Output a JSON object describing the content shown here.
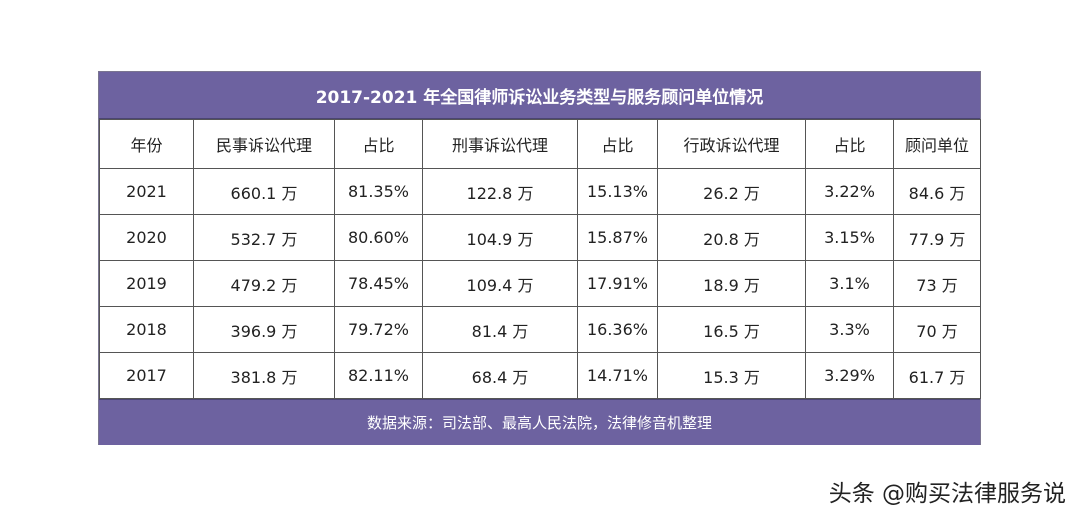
{
  "table": {
    "title": "2017-2021 年全国律师诉讼业务类型与服务顾问单位情况",
    "headers": [
      "年份",
      "民事诉讼代理",
      "占比",
      "刑事诉讼代理",
      "占比",
      "行政诉讼代理",
      "占比",
      "顾问单位"
    ],
    "rows": [
      [
        "2021",
        "660.1 万",
        "81.35%",
        "122.8 万",
        "15.13%",
        "26.2 万",
        "3.22%",
        "84.6 万"
      ],
      [
        "2020",
        "532.7 万",
        "80.60%",
        "104.9 万",
        "15.87%",
        "20.8 万",
        "3.15%",
        "77.9 万"
      ],
      [
        "2019",
        "479.2 万",
        "78.45%",
        "109.4 万",
        "17.91%",
        "18.9 万",
        "3.1%",
        "73 万"
      ],
      [
        "2018",
        "396.9 万",
        "79.72%",
        "81.4 万",
        "16.36%",
        "16.5 万",
        "3.3%",
        "70 万"
      ],
      [
        "2017",
        "381.8 万",
        "82.11%",
        "68.4 万",
        "14.71%",
        "15.3 万",
        "3.29%",
        "61.7 万"
      ]
    ],
    "source": "数据来源：司法部、最高人民法院，法律修音机整理"
  },
  "watermark": "头条 @购买法律服务说",
  "colors": {
    "header_bar": "#6d62a0",
    "header_text": "#ffffff"
  }
}
